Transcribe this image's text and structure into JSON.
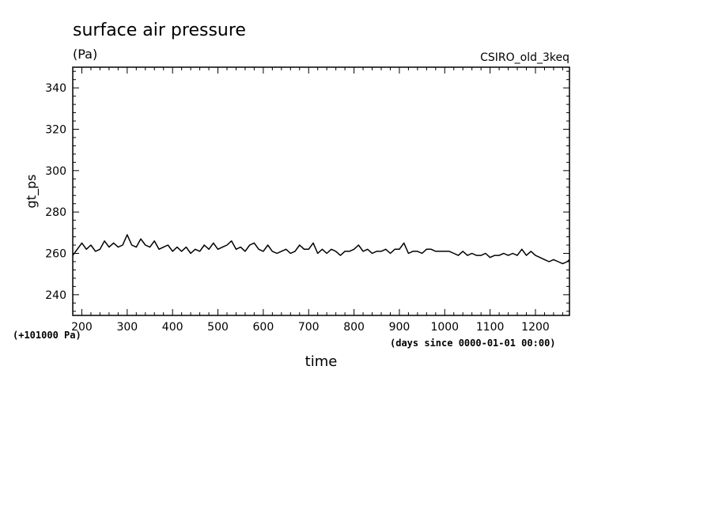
{
  "chart_data": {
    "type": "line",
    "title": "surface air pressure",
    "units": "(Pa)",
    "source": "CSIRO_old_3keq",
    "xlabel": "time",
    "x_units": "(days since 0000-01-01 00:00)",
    "ylabel": "gt_ps",
    "y_offset_label": "(+101000 Pa)",
    "xlim": [
      180,
      1275
    ],
    "ylim": [
      230,
      350
    ],
    "x_ticks": [
      200,
      300,
      400,
      500,
      600,
      700,
      800,
      900,
      1000,
      1100,
      1200
    ],
    "y_ticks": [
      240,
      260,
      280,
      300,
      320,
      340
    ],
    "grid": false,
    "series": [
      {
        "color": "#000000",
        "x": [
          180,
          190,
          200,
          210,
          220,
          230,
          240,
          250,
          260,
          270,
          280,
          290,
          300,
          310,
          320,
          330,
          340,
          350,
          360,
          370,
          380,
          390,
          400,
          410,
          420,
          430,
          440,
          450,
          460,
          470,
          480,
          490,
          500,
          510,
          520,
          530,
          540,
          550,
          560,
          570,
          580,
          590,
          600,
          610,
          620,
          630,
          640,
          650,
          660,
          670,
          680,
          690,
          700,
          710,
          720,
          730,
          740,
          750,
          760,
          770,
          780,
          790,
          800,
          810,
          820,
          830,
          840,
          850,
          860,
          870,
          880,
          890,
          900,
          910,
          920,
          930,
          940,
          950,
          960,
          970,
          980,
          990,
          1000,
          1010,
          1020,
          1030,
          1040,
          1050,
          1060,
          1070,
          1080,
          1090,
          1100,
          1110,
          1120,
          1130,
          1140,
          1150,
          1160,
          1170,
          1180,
          1190,
          1200,
          1210,
          1220,
          1230,
          1240,
          1250,
          1260,
          1270,
          1275
        ],
        "y": [
          259,
          262,
          265,
          262,
          264,
          261,
          262,
          266,
          263,
          265,
          263,
          264,
          269,
          264,
          263,
          267,
          264,
          263,
          266,
          262,
          263,
          264,
          261,
          263,
          261,
          263,
          260,
          262,
          261,
          264,
          262,
          265,
          262,
          263,
          264,
          266,
          262,
          263,
          261,
          264,
          265,
          262,
          261,
          264,
          261,
          260,
          261,
          262,
          260,
          261,
          264,
          262,
          262,
          265,
          260,
          262,
          260,
          262,
          261,
          259,
          261,
          261,
          262,
          264,
          261,
          262,
          260,
          261,
          261,
          262,
          260,
          262,
          262,
          265,
          260,
          261,
          261,
          260,
          262,
          262,
          261,
          261,
          261,
          261,
          260,
          259,
          261,
          259,
          260,
          259,
          259,
          260,
          258,
          259,
          259,
          260,
          259,
          260,
          259,
          262,
          259,
          261,
          259,
          258,
          257,
          256,
          257,
          256,
          255,
          256,
          257
        ]
      }
    ]
  }
}
